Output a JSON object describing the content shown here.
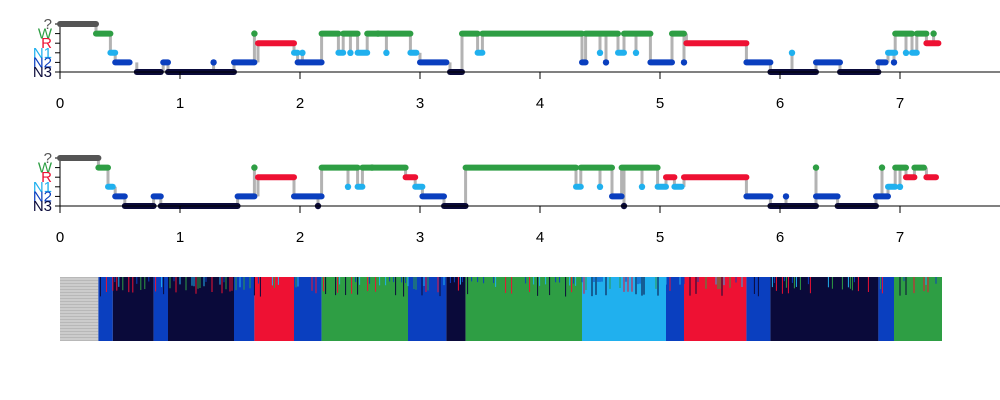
{
  "chart_data": [
    {
      "type": "scatter",
      "title": "",
      "xlabel": "",
      "ylabel": "",
      "xlim": [
        0,
        7.35
      ],
      "x_ticks": [
        "0",
        "1",
        "2",
        "3",
        "4",
        "5",
        "6",
        "7"
      ],
      "y_categories": [
        "?",
        "W",
        "R",
        "N1",
        "N2",
        "N3"
      ],
      "state_colors": {
        "?": "#555555",
        "W": "#2e9e44",
        "R": "#ee1133",
        "N1": "#20b0ee",
        "N2": "#0a3fbf",
        "N3": "#0a0a3a"
      },
      "connector_color": "#b3b3b3",
      "segments": [
        {
          "state": "?",
          "from": 0.0,
          "to": 0.3
        },
        {
          "state": "W",
          "from": 0.3,
          "to": 0.42
        },
        {
          "state": "N1",
          "from": 0.42,
          "to": 0.46
        },
        {
          "state": "N2",
          "from": 0.46,
          "to": 0.58
        },
        {
          "state": "N3",
          "from": 0.64,
          "to": 0.84
        },
        {
          "state": "N2",
          "from": 0.86,
          "to": 0.9
        },
        {
          "state": "N3",
          "from": 0.9,
          "to": 1.45
        },
        {
          "state": "N2",
          "from": 1.45,
          "to": 1.62
        },
        {
          "state": "R",
          "from": 1.65,
          "to": 1.95
        },
        {
          "state": "N1",
          "from": 1.95,
          "to": 1.98
        },
        {
          "state": "N2",
          "from": 1.98,
          "to": 2.18
        },
        {
          "state": "W",
          "from": 2.18,
          "to": 2.32
        },
        {
          "state": "N1",
          "from": 2.32,
          "to": 2.36
        },
        {
          "state": "W",
          "from": 2.36,
          "to": 2.48
        },
        {
          "state": "N1",
          "from": 2.48,
          "to": 2.56
        },
        {
          "state": "W",
          "from": 2.56,
          "to": 2.92
        },
        {
          "state": "N1",
          "from": 2.92,
          "to": 2.97
        },
        {
          "state": "N2",
          "from": 3.0,
          "to": 3.22
        },
        {
          "state": "N3",
          "from": 3.25,
          "to": 3.35
        },
        {
          "state": "W",
          "from": 3.35,
          "to": 3.48
        },
        {
          "state": "N1",
          "from": 3.48,
          "to": 3.52
        },
        {
          "state": "W",
          "from": 3.52,
          "to": 4.35
        },
        {
          "state": "N2",
          "from": 4.35,
          "to": 4.38
        },
        {
          "state": "W",
          "from": 4.38,
          "to": 4.65
        },
        {
          "state": "N1",
          "from": 4.65,
          "to": 4.7
        },
        {
          "state": "W",
          "from": 4.7,
          "to": 4.92
        },
        {
          "state": "N2",
          "from": 4.92,
          "to": 5.1
        },
        {
          "state": "W",
          "from": 5.1,
          "to": 5.2
        },
        {
          "state": "R",
          "from": 5.22,
          "to": 5.72
        },
        {
          "state": "N2",
          "from": 5.72,
          "to": 5.92
        },
        {
          "state": "N3",
          "from": 5.92,
          "to": 6.3
        },
        {
          "state": "N2",
          "from": 6.3,
          "to": 6.5
        },
        {
          "state": "N3",
          "from": 6.5,
          "to": 6.82
        },
        {
          "state": "N2",
          "from": 6.82,
          "to": 6.88
        },
        {
          "state": "N1",
          "from": 6.9,
          "to": 6.96
        },
        {
          "state": "W",
          "from": 6.96,
          "to": 7.1
        },
        {
          "state": "N1",
          "from": 7.1,
          "to": 7.14
        },
        {
          "state": "W",
          "from": 7.14,
          "to": 7.22
        },
        {
          "state": "R",
          "from": 7.22,
          "to": 7.32
        }
      ],
      "spikes": [
        {
          "state": "W",
          "x": 1.62
        },
        {
          "state": "N2",
          "x": 1.28
        },
        {
          "state": "N1",
          "x": 2.02
        },
        {
          "state": "N1",
          "x": 2.42
        },
        {
          "state": "W",
          "x": 2.65
        },
        {
          "state": "N1",
          "x": 2.72
        },
        {
          "state": "N2",
          "x": 4.55
        },
        {
          "state": "N1",
          "x": 4.5
        },
        {
          "state": "N1",
          "x": 4.8
        },
        {
          "state": "N2",
          "x": 5.2
        },
        {
          "state": "N1",
          "x": 6.1
        },
        {
          "state": "N2",
          "x": 6.95
        },
        {
          "state": "N1",
          "x": 7.05
        },
        {
          "state": "W",
          "x": 7.28
        }
      ]
    },
    {
      "type": "scatter",
      "title": "",
      "xlabel": "",
      "ylabel": "",
      "xlim": [
        0,
        7.35
      ],
      "x_ticks": [
        "0",
        "1",
        "2",
        "3",
        "4",
        "5",
        "6",
        "7"
      ],
      "y_categories": [
        "?",
        "W",
        "R",
        "N1",
        "N2",
        "N3"
      ],
      "state_colors": {
        "?": "#555555",
        "W": "#2e9e44",
        "R": "#ee1133",
        "N1": "#20b0ee",
        "N2": "#0a3fbf",
        "N3": "#0a0a3a"
      },
      "connector_color": "#b3b3b3",
      "segments": [
        {
          "state": "?",
          "from": 0.0,
          "to": 0.32
        },
        {
          "state": "W",
          "from": 0.32,
          "to": 0.4
        },
        {
          "state": "N1",
          "from": 0.4,
          "to": 0.44
        },
        {
          "state": "N2",
          "from": 0.46,
          "to": 0.54
        },
        {
          "state": "N3",
          "from": 0.54,
          "to": 0.78
        },
        {
          "state": "N2",
          "from": 0.78,
          "to": 0.84
        },
        {
          "state": "N3",
          "from": 0.84,
          "to": 1.48
        },
        {
          "state": "N2",
          "from": 1.48,
          "to": 1.62
        },
        {
          "state": "R",
          "from": 1.65,
          "to": 1.95
        },
        {
          "state": "N2",
          "from": 1.95,
          "to": 2.18
        },
        {
          "state": "W",
          "from": 2.18,
          "to": 2.48
        },
        {
          "state": "N1",
          "from": 2.48,
          "to": 2.52
        },
        {
          "state": "W",
          "from": 2.52,
          "to": 2.88
        },
        {
          "state": "R",
          "from": 2.88,
          "to": 2.96
        },
        {
          "state": "N1",
          "from": 2.96,
          "to": 3.02
        },
        {
          "state": "N2",
          "from": 3.02,
          "to": 3.2
        },
        {
          "state": "N3",
          "from": 3.2,
          "to": 3.38
        },
        {
          "state": "W",
          "from": 3.38,
          "to": 4.3
        },
        {
          "state": "N1",
          "from": 4.3,
          "to": 4.34
        },
        {
          "state": "W",
          "from": 4.34,
          "to": 4.6
        },
        {
          "state": "N2",
          "from": 4.6,
          "to": 4.68
        },
        {
          "state": "W",
          "from": 4.68,
          "to": 4.98
        },
        {
          "state": "N1",
          "from": 4.98,
          "to": 5.05
        },
        {
          "state": "R",
          "from": 5.05,
          "to": 5.12
        },
        {
          "state": "N1",
          "from": 5.12,
          "to": 5.18
        },
        {
          "state": "R",
          "from": 5.2,
          "to": 5.72
        },
        {
          "state": "N2",
          "from": 5.72,
          "to": 5.92
        },
        {
          "state": "N3",
          "from": 5.92,
          "to": 6.3
        },
        {
          "state": "N2",
          "from": 6.3,
          "to": 6.48
        },
        {
          "state": "N3",
          "from": 6.48,
          "to": 6.8
        },
        {
          "state": "N2",
          "from": 6.8,
          "to": 6.9
        },
        {
          "state": "N1",
          "from": 6.9,
          "to": 6.96
        },
        {
          "state": "W",
          "from": 6.96,
          "to": 7.05
        },
        {
          "state": "R",
          "from": 7.05,
          "to": 7.12
        },
        {
          "state": "W",
          "from": 7.12,
          "to": 7.2
        },
        {
          "state": "R",
          "from": 7.22,
          "to": 7.3
        }
      ],
      "spikes": [
        {
          "state": "W",
          "x": 1.62
        },
        {
          "state": "N3",
          "x": 2.15
        },
        {
          "state": "N1",
          "x": 2.4
        },
        {
          "state": "W",
          "x": 2.6
        },
        {
          "state": "N3",
          "x": 4.7
        },
        {
          "state": "N1",
          "x": 4.5
        },
        {
          "state": "N1",
          "x": 4.85
        },
        {
          "state": "N2",
          "x": 6.05
        },
        {
          "state": "W",
          "x": 6.3
        },
        {
          "state": "W",
          "x": 6.85
        },
        {
          "state": "N1",
          "x": 7.0
        }
      ]
    },
    {
      "type": "heatmap",
      "title": "",
      "xlabel": "",
      "ylabel": "",
      "xlim": [
        0,
        7.35
      ],
      "description_states": [
        "W",
        "R",
        "N1",
        "N2",
        "N3"
      ],
      "state_colors": {
        "?": "#b8b8b8",
        "W": "#2e9e44",
        "R": "#ee1133",
        "N1": "#20b0ee",
        "N2": "#0a3fbf",
        "N3": "#0a0a3a"
      },
      "bands": [
        {
          "state": "?",
          "from": 0.0,
          "to": 0.32
        },
        {
          "state": "N2",
          "from": 0.32,
          "to": 0.44
        },
        {
          "state": "N3",
          "from": 0.44,
          "to": 0.78
        },
        {
          "state": "N2",
          "from": 0.78,
          "to": 0.9
        },
        {
          "state": "N3",
          "from": 0.9,
          "to": 1.45
        },
        {
          "state": "N2",
          "from": 1.45,
          "to": 1.62
        },
        {
          "state": "R",
          "from": 1.62,
          "to": 1.95
        },
        {
          "state": "N2",
          "from": 1.95,
          "to": 2.18
        },
        {
          "state": "W",
          "from": 2.18,
          "to": 2.9
        },
        {
          "state": "N2",
          "from": 2.9,
          "to": 3.22
        },
        {
          "state": "N3",
          "from": 3.22,
          "to": 3.38
        },
        {
          "state": "W",
          "from": 3.38,
          "to": 4.35
        },
        {
          "state": "N1",
          "from": 4.35,
          "to": 5.05
        },
        {
          "state": "N2",
          "from": 5.05,
          "to": 5.2
        },
        {
          "state": "R",
          "from": 5.2,
          "to": 5.72
        },
        {
          "state": "N2",
          "from": 5.72,
          "to": 5.92
        },
        {
          "state": "N3",
          "from": 5.92,
          "to": 6.82
        },
        {
          "state": "N2",
          "from": 6.82,
          "to": 6.95
        },
        {
          "state": "W",
          "from": 6.95,
          "to": 7.35
        }
      ]
    }
  ]
}
